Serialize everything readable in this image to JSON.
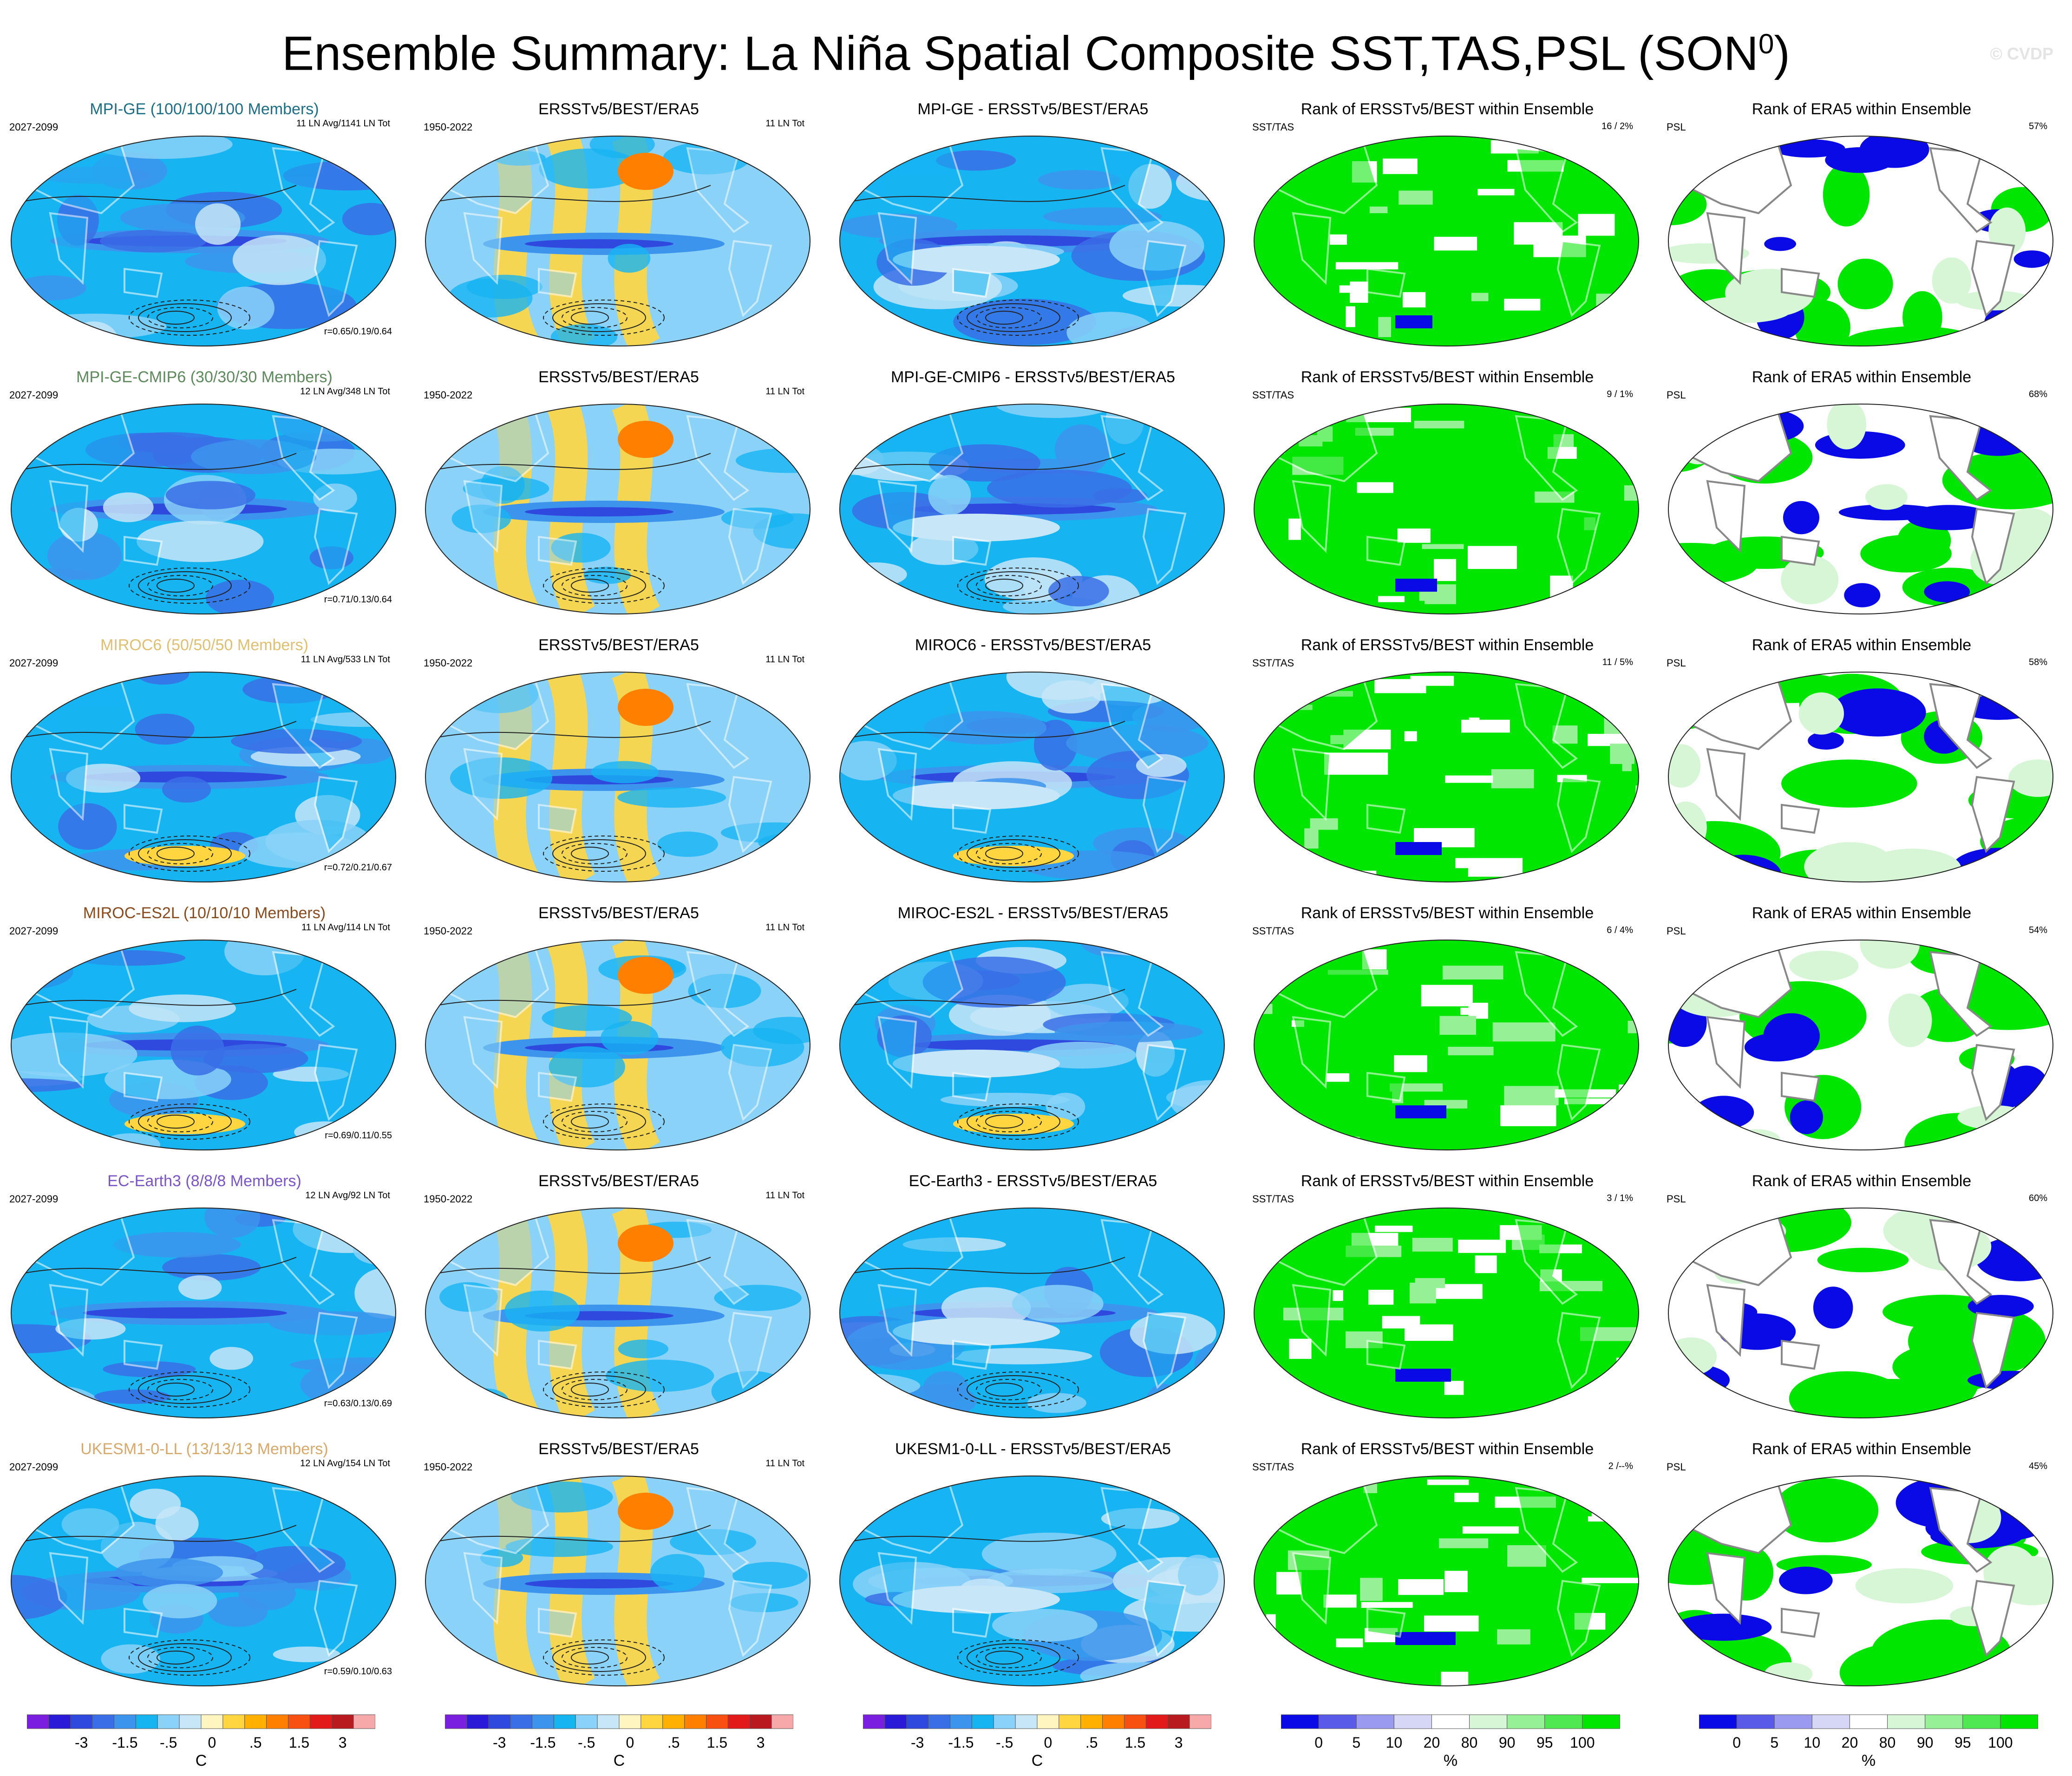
{
  "title": "Ensemble Summary: La Niña Spatial Composite SST,TAS,PSL (SON",
  "title_sup": "0",
  "title_close": ")",
  "watermark": "© CVDP",
  "chart_data": {
    "type": "heatmap",
    "description_scope": "Six model rows x five map columns of global Robinson-projection maps",
    "rows": [
      {
        "model": "MPI-GE (100/100/100 Members)",
        "model_color": "#1c6e86",
        "col1_period": "2027-2099",
        "col1_stats": "11 LN Avg/1141 LN Tot",
        "col1_corr": "r=0.65/0.19/0.64",
        "col2_title": "ERSSTv5/BEST/ERA5",
        "col2_period": "1950-2022",
        "col2_stats": "11 LN Tot",
        "col3_title": "MPI-GE - ERSSTv5/BEST/ERA5",
        "col4_title": "Rank of ERSSTv5/BEST within Ensemble",
        "col4_label": "SST/TAS",
        "col4_value": "16 /   2%",
        "col5_title": "Rank of ERA5 within Ensemble",
        "col5_label": "PSL",
        "col5_value": "57%"
      },
      {
        "model": "MPI-GE-CMIP6 (30/30/30 Members)",
        "model_color": "#5c8a5a",
        "col1_period": "2027-2099",
        "col1_stats": "12 LN Avg/348 LN Tot",
        "col1_corr": "r=0.71/0.13/0.64",
        "col2_title": "ERSSTv5/BEST/ERA5",
        "col2_period": "1950-2022",
        "col2_stats": "11 LN Tot",
        "col3_title": "MPI-GE-CMIP6 - ERSSTv5/BEST/ERA5",
        "col4_title": "Rank of ERSSTv5/BEST within Ensemble",
        "col4_label": "SST/TAS",
        "col4_value": "9 /   1%",
        "col5_title": "Rank of ERA5 within Ensemble",
        "col5_label": "PSL",
        "col5_value": "68%"
      },
      {
        "model": "MIROC6 (50/50/50 Members)",
        "model_color": "#e0c070",
        "col1_period": "2027-2099",
        "col1_stats": "11 LN Avg/533 LN Tot",
        "col1_corr": "r=0.72/0.21/0.67",
        "col2_title": "ERSSTv5/BEST/ERA5",
        "col2_period": "1950-2022",
        "col2_stats": "11 LN Tot",
        "col3_title": "MIROC6 - ERSSTv5/BEST/ERA5",
        "col4_title": "Rank of ERSSTv5/BEST within Ensemble",
        "col4_label": "SST/TAS",
        "col4_value": "11 /   5%",
        "col5_title": "Rank of ERA5 within Ensemble",
        "col5_label": "PSL",
        "col5_value": "58%"
      },
      {
        "model": "MIROC-ES2L (10/10/10 Members)",
        "model_color": "#8a4a1c",
        "col1_period": "2027-2099",
        "col1_stats": "11 LN Avg/114 LN Tot",
        "col1_corr": "r=0.69/0.11/0.55",
        "col2_title": "ERSSTv5/BEST/ERA5",
        "col2_period": "1950-2022",
        "col2_stats": "11 LN Tot",
        "col3_title": "MIROC-ES2L - ERSSTv5/BEST/ERA5",
        "col4_title": "Rank of ERSSTv5/BEST within Ensemble",
        "col4_label": "SST/TAS",
        "col4_value": "6 /   4%",
        "col5_title": "Rank of ERA5 within Ensemble",
        "col5_label": "PSL",
        "col5_value": "54%"
      },
      {
        "model": "EC-Earth3 (8/8/8 Members)",
        "model_color": "#7a55c9",
        "col1_period": "2027-2099",
        "col1_stats": "12 LN Avg/92 LN Tot",
        "col1_corr": "r=0.63/0.13/0.69",
        "col2_title": "ERSSTv5/BEST/ERA5",
        "col2_period": "1950-2022",
        "col2_stats": "11 LN Tot",
        "col3_title": "EC-Earth3 - ERSSTv5/BEST/ERA5",
        "col4_title": "Rank of ERSSTv5/BEST within Ensemble",
        "col4_label": "SST/TAS",
        "col4_value": "3 /   1%",
        "col5_title": "Rank of ERA5 within Ensemble",
        "col5_label": "PSL",
        "col5_value": "60%"
      },
      {
        "model": "UKESM1-0-LL (13/13/13 Members)",
        "model_color": "#d8a86a",
        "col1_period": "2027-2099",
        "col1_stats": "12 LN Avg/154 LN Tot",
        "col1_corr": "r=0.59/0.10/0.63",
        "col2_title": "ERSSTv5/BEST/ERA5",
        "col2_period": "1950-2022",
        "col2_stats": "11 LN Tot",
        "col3_title": "UKESM1-0-LL - ERSSTv5/BEST/ERA5",
        "col4_title": "Rank of ERSSTv5/BEST within Ensemble",
        "col4_label": "SST/TAS",
        "col4_value": "2 /--%",
        "col5_title": "Rank of ERA5 within Ensemble",
        "col5_label": "PSL",
        "col5_value": "45%"
      }
    ],
    "colorbars": [
      {
        "kind": "temperature",
        "unit": "C",
        "tick_labels": [
          "-3",
          "-1.5",
          "-.5",
          "0",
          ".5",
          "1.5",
          "3"
        ],
        "colors": [
          "#7a1fe0",
          "#2a1ad8",
          "#2f48de",
          "#3a6ee6",
          "#3d94ec",
          "#17b4f2",
          "#8ad2f8",
          "#c7e6f8",
          "#fff5c0",
          "#ffd640",
          "#ffb000",
          "#ff8000",
          "#f85010",
          "#e21a1a",
          "#b81a20",
          "#f7a9a9"
        ]
      },
      {
        "kind": "temperature",
        "unit": "C",
        "tick_labels": [
          "-3",
          "-1.5",
          "-.5",
          "0",
          ".5",
          "1.5",
          "3"
        ],
        "colors": [
          "#7a1fe0",
          "#2a1ad8",
          "#2f48de",
          "#3a6ee6",
          "#3d94ec",
          "#17b4f2",
          "#8ad2f8",
          "#c7e6f8",
          "#fff5c0",
          "#ffd640",
          "#ffb000",
          "#ff8000",
          "#f85010",
          "#e21a1a",
          "#b81a20",
          "#f7a9a9"
        ]
      },
      {
        "kind": "temperature",
        "unit": "C",
        "tick_labels": [
          "-3",
          "-1.5",
          "-.5",
          "0",
          ".5",
          "1.5",
          "3"
        ],
        "colors": [
          "#7a1fe0",
          "#2a1ad8",
          "#2f48de",
          "#3a6ee6",
          "#3d94ec",
          "#17b4f2",
          "#8ad2f8",
          "#c7e6f8",
          "#fff5c0",
          "#ffd640",
          "#ffb000",
          "#ff8000",
          "#f85010",
          "#e21a1a",
          "#b81a20",
          "#f7a9a9"
        ]
      },
      {
        "kind": "rank",
        "unit": "%",
        "tick_labels": [
          "0",
          "5",
          "10",
          "20",
          "80",
          "90",
          "95",
          "100"
        ],
        "colors": [
          "#0a0ae6",
          "#5a5ae8",
          "#9a9af0",
          "#d6d6f6",
          "#ffffff",
          "#d6f6d6",
          "#96f096",
          "#50e850",
          "#00e600"
        ]
      },
      {
        "kind": "rank",
        "unit": "%",
        "tick_labels": [
          "0",
          "5",
          "10",
          "20",
          "80",
          "90",
          "95",
          "100"
        ],
        "colors": [
          "#0a0ae6",
          "#5a5ae8",
          "#9a9af0",
          "#d6d6f6",
          "#ffffff",
          "#d6f6d6",
          "#96f096",
          "#50e850",
          "#00e600"
        ]
      }
    ]
  }
}
